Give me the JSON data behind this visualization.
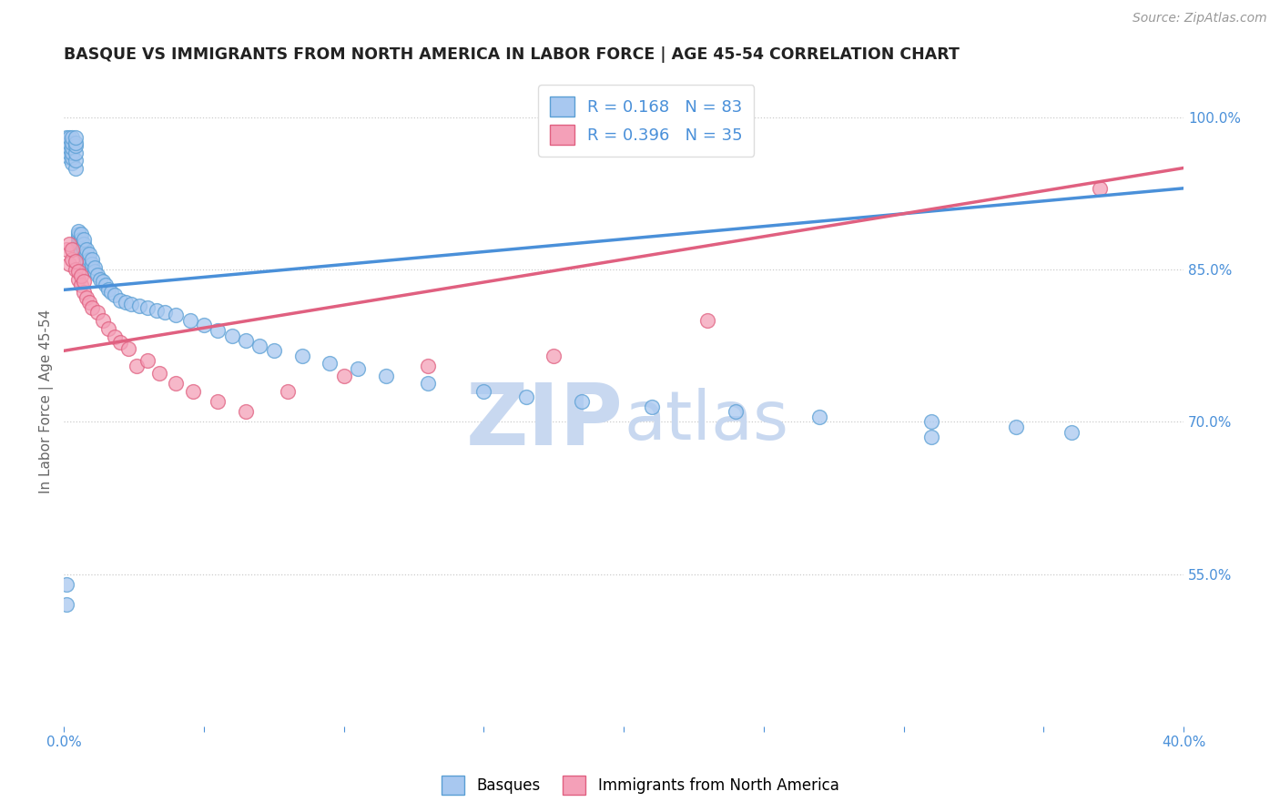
{
  "title": "BASQUE VS IMMIGRANTS FROM NORTH AMERICA IN LABOR FORCE | AGE 45-54 CORRELATION CHART",
  "source": "Source: ZipAtlas.com",
  "ylabel": "In Labor Force | Age 45-54",
  "xlim": [
    0.0,
    0.4
  ],
  "ylim": [
    0.4,
    1.04
  ],
  "xticks": [
    0.0,
    0.05,
    0.1,
    0.15,
    0.2,
    0.25,
    0.3,
    0.35,
    0.4
  ],
  "xticklabels": [
    "0.0%",
    "",
    "",
    "",
    "",
    "",
    "",
    "",
    "40.0%"
  ],
  "yticks_right": [
    0.55,
    0.7,
    0.85,
    1.0
  ],
  "ytick_right_labels": [
    "55.0%",
    "70.0%",
    "85.0%",
    "100.0%"
  ],
  "grid_color": "#cccccc",
  "bg_color": "#ffffff",
  "blue_color": "#A8C8F0",
  "pink_color": "#F4A0B8",
  "blue_edge_color": "#5A9FD4",
  "pink_edge_color": "#E06080",
  "blue_line_color": "#4A90D9",
  "pink_line_color": "#E06080",
  "legend_blue_r": "0.168",
  "legend_blue_n": "83",
  "legend_pink_r": "0.396",
  "legend_pink_n": "35",
  "label_basques": "Basques",
  "label_immigrants": "Immigrants from North America",
  "blue_x": [
    0.001,
    0.001,
    0.001,
    0.002,
    0.002,
    0.002,
    0.002,
    0.002,
    0.003,
    0.003,
    0.003,
    0.003,
    0.003,
    0.003,
    0.004,
    0.004,
    0.004,
    0.004,
    0.004,
    0.004,
    0.005,
    0.005,
    0.005,
    0.005,
    0.005,
    0.006,
    0.006,
    0.006,
    0.006,
    0.007,
    0.007,
    0.007,
    0.007,
    0.008,
    0.008,
    0.008,
    0.009,
    0.009,
    0.009,
    0.01,
    0.01,
    0.01,
    0.011,
    0.011,
    0.012,
    0.013,
    0.014,
    0.015,
    0.016,
    0.017,
    0.018,
    0.02,
    0.022,
    0.024,
    0.027,
    0.03,
    0.033,
    0.036,
    0.04,
    0.045,
    0.05,
    0.055,
    0.06,
    0.065,
    0.07,
    0.075,
    0.085,
    0.095,
    0.105,
    0.115,
    0.13,
    0.15,
    0.165,
    0.185,
    0.21,
    0.24,
    0.27,
    0.31,
    0.34,
    0.36,
    0.001,
    0.001,
    0.31
  ],
  "blue_y": [
    0.97,
    0.975,
    0.98,
    0.96,
    0.965,
    0.97,
    0.975,
    0.98,
    0.955,
    0.96,
    0.965,
    0.97,
    0.975,
    0.98,
    0.95,
    0.958,
    0.965,
    0.972,
    0.975,
    0.98,
    0.875,
    0.878,
    0.882,
    0.885,
    0.888,
    0.87,
    0.875,
    0.88,
    0.885,
    0.865,
    0.87,
    0.875,
    0.88,
    0.86,
    0.865,
    0.87,
    0.855,
    0.86,
    0.865,
    0.85,
    0.855,
    0.86,
    0.848,
    0.852,
    0.845,
    0.84,
    0.838,
    0.835,
    0.83,
    0.828,
    0.825,
    0.82,
    0.818,
    0.816,
    0.814,
    0.812,
    0.81,
    0.808,
    0.805,
    0.8,
    0.795,
    0.79,
    0.785,
    0.78,
    0.775,
    0.77,
    0.765,
    0.758,
    0.752,
    0.745,
    0.738,
    0.73,
    0.725,
    0.72,
    0.715,
    0.71,
    0.705,
    0.7,
    0.695,
    0.69,
    0.54,
    0.52,
    0.685
  ],
  "pink_x": [
    0.001,
    0.002,
    0.002,
    0.003,
    0.003,
    0.004,
    0.004,
    0.005,
    0.005,
    0.006,
    0.006,
    0.007,
    0.007,
    0.008,
    0.009,
    0.01,
    0.012,
    0.014,
    0.016,
    0.018,
    0.02,
    0.023,
    0.026,
    0.03,
    0.034,
    0.04,
    0.046,
    0.055,
    0.065,
    0.08,
    0.1,
    0.13,
    0.175,
    0.23,
    0.37
  ],
  "pink_y": [
    0.87,
    0.855,
    0.875,
    0.86,
    0.87,
    0.85,
    0.858,
    0.84,
    0.848,
    0.835,
    0.844,
    0.828,
    0.838,
    0.822,
    0.818,
    0.812,
    0.808,
    0.8,
    0.792,
    0.784,
    0.778,
    0.772,
    0.755,
    0.76,
    0.748,
    0.738,
    0.73,
    0.72,
    0.71,
    0.73,
    0.745,
    0.755,
    0.765,
    0.8,
    0.93
  ],
  "watermark_zip": "ZIP",
  "watermark_atlas": "atlas",
  "watermark_color": "#C8D8F0",
  "title_color": "#222222",
  "tick_color": "#4A90D9"
}
